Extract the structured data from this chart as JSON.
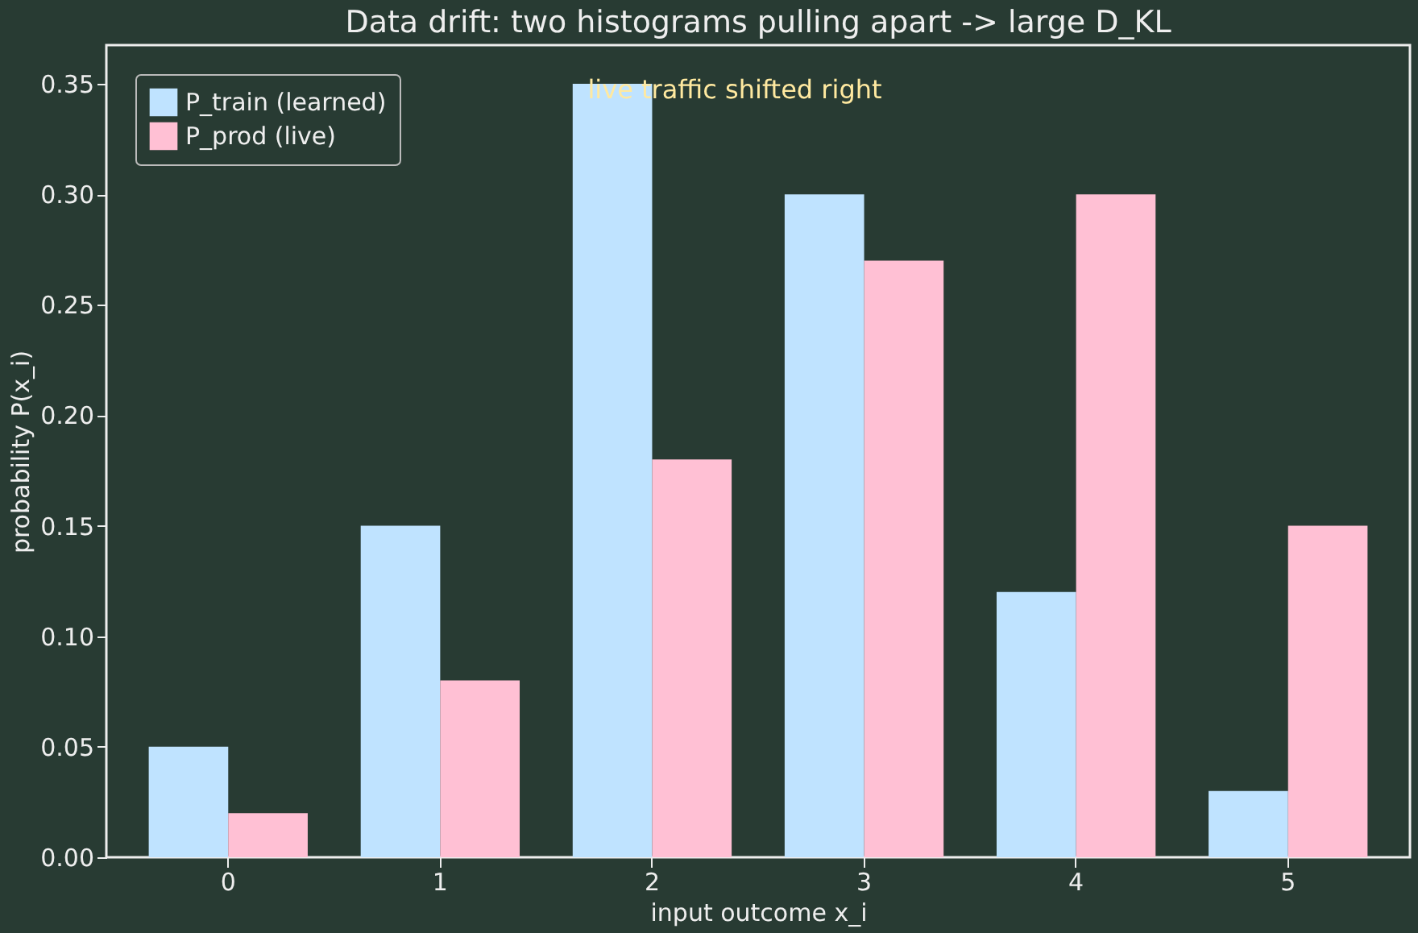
{
  "chart_data": {
    "type": "bar",
    "title": "Data drift: two histograms pulling apart  ->  large D_KL",
    "xlabel": "input outcome  x_i",
    "ylabel": "probability  P(x_i)",
    "categories": [
      "0",
      "1",
      "2",
      "3",
      "4",
      "5"
    ],
    "series": [
      {
        "name": "P_train (learned)",
        "color": "#bfe3ff",
        "values": [
          0.05,
          0.15,
          0.35,
          0.3,
          0.12,
          0.03
        ]
      },
      {
        "name": "P_prod (live)",
        "color": "#ffc0d4",
        "values": [
          0.02,
          0.08,
          0.18,
          0.27,
          0.3,
          0.15
        ]
      }
    ],
    "ylim": [
      0,
      0.3675
    ],
    "yticks": [
      {
        "value": 0,
        "label": "0.00"
      },
      0.05,
      {
        "value": 0.1,
        "label": "0.10"
      },
      0.15,
      {
        "value": 0.2,
        "label": "0.20"
      },
      0.25,
      {
        "value": 0.3,
        "label": "0.30"
      },
      0.35
    ],
    "annotations": [
      "live traffic shifted right"
    ],
    "legend": "top left",
    "grid": false
  }
}
